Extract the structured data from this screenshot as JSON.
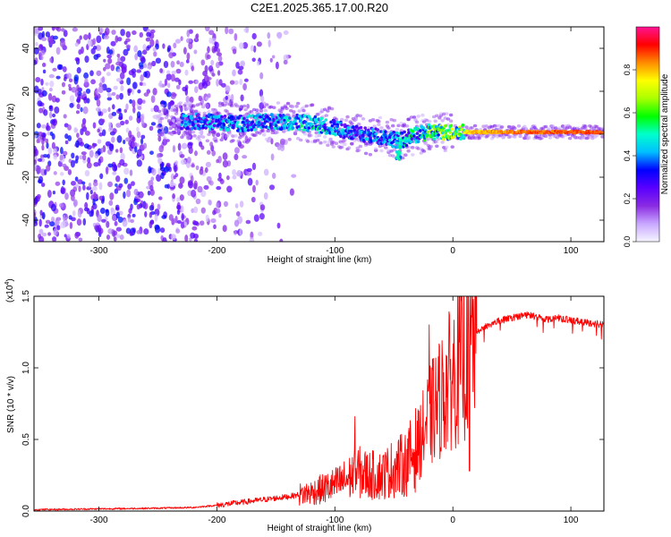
{
  "figure_title": "C2E1.2025.365.17.00.R20",
  "chart_data": [
    {
      "type": "heatmap",
      "title": "C2E1.2025.365.17.00.R20",
      "xlabel": "Height of straight line (km)",
      "ylabel": "Frequency (Hz)",
      "xlim": [
        -355,
        128
      ],
      "ylim": [
        -50,
        50
      ],
      "xticks": [
        -300,
        -200,
        -100,
        0,
        100
      ],
      "xtick_labels": [
        "-300",
        "-200",
        "-100",
        "0",
        "100"
      ],
      "yticks": [
        -40,
        -20,
        0,
        20,
        40
      ],
      "ytick_labels": [
        "-40",
        "-20",
        "0",
        "20",
        "40"
      ],
      "colorbar": {
        "label": "Normalized spectral amplitude",
        "range": [
          0,
          1
        ],
        "ticks": [
          0.0,
          0.2,
          0.4,
          0.6,
          0.8
        ],
        "tick_labels": [
          "0.0",
          "0.2",
          "0.4",
          "0.6",
          "0.8"
        ],
        "colors": [
          "#f5f5ff",
          "#c9a8ff",
          "#8a2be2",
          "#5a00ff",
          "#0000ff",
          "#00bfff",
          "#00ffcc",
          "#00ff00",
          "#aaff00",
          "#ffff00",
          "#ff8c00",
          "#ff0000",
          "#ff1493"
        ]
      },
      "ridge": {
        "description": "dominant frequency band",
        "points": [
          {
            "x": -215,
            "f": 6,
            "amp": 0.45
          },
          {
            "x": -180,
            "f": 5,
            "amp": 0.5
          },
          {
            "x": -150,
            "f": 6,
            "amp": 0.5
          },
          {
            "x": -120,
            "f": 5,
            "amp": 0.55
          },
          {
            "x": -100,
            "f": 3,
            "amp": 0.5
          },
          {
            "x": -80,
            "f": 0,
            "amp": 0.45
          },
          {
            "x": -60,
            "f": -1,
            "amp": 0.45
          },
          {
            "x": -45,
            "f": -3,
            "amp": 0.5
          },
          {
            "x": -35,
            "f": -1,
            "amp": 0.55
          },
          {
            "x": -20,
            "f": 1,
            "amp": 0.65
          },
          {
            "x": 0,
            "f": 1,
            "amp": 0.75
          },
          {
            "x": 20,
            "f": 1,
            "amp": 0.82
          },
          {
            "x": 60,
            "f": 1,
            "amp": 0.88
          },
          {
            "x": 100,
            "f": 1,
            "amp": 0.9
          },
          {
            "x": 128,
            "f": 1,
            "amp": 0.9
          }
        ],
        "noise_region_x": [
          -355,
          -170
        ],
        "noise_amplitude_max": 0.3
      }
    },
    {
      "type": "line",
      "xlabel": "Height of straight line (km)",
      "ylabel": "SNR (10 * v/v)",
      "yscale_label": "(x10",
      "yscale_exponent": "4",
      "xlim": [
        -355,
        128
      ],
      "ylim": [
        0,
        1.5
      ],
      "xticks": [
        -300,
        -200,
        -100,
        0,
        100
      ],
      "xtick_labels": [
        "-300",
        "-200",
        "-100",
        "0",
        "100"
      ],
      "yticks": [
        0.0,
        0.5,
        1.0,
        1.5
      ],
      "ytick_labels": [
        "0.0",
        "0.5",
        "1.0",
        "1.5"
      ],
      "line_color": "#ff0000",
      "series": [
        {
          "name": "SNR",
          "x": [
            -355,
            -300,
            -250,
            -220,
            -200,
            -180,
            -160,
            -140,
            -120,
            -100,
            -90,
            -80,
            -70,
            -60,
            -50,
            -40,
            -30,
            -20,
            -10,
            0,
            10,
            15,
            20,
            30,
            40,
            50,
            60,
            70,
            80,
            90,
            100,
            110,
            120,
            128
          ],
          "values": [
            0.01,
            0.015,
            0.02,
            0.025,
            0.04,
            0.06,
            0.08,
            0.1,
            0.13,
            0.18,
            0.22,
            0.27,
            0.25,
            0.25,
            0.3,
            0.33,
            0.45,
            0.65,
            0.8,
            0.95,
            1.05,
            1.2,
            1.25,
            1.3,
            1.33,
            1.35,
            1.37,
            1.36,
            1.34,
            1.35,
            1.33,
            1.32,
            1.31,
            1.3
          ]
        }
      ],
      "spikes": [
        {
          "x": -83,
          "value": 0.66
        },
        {
          "x": -20,
          "value": 1.3
        },
        {
          "x": 13,
          "value": 1.5
        },
        {
          "x": 14,
          "value": 0.28
        }
      ]
    }
  ]
}
